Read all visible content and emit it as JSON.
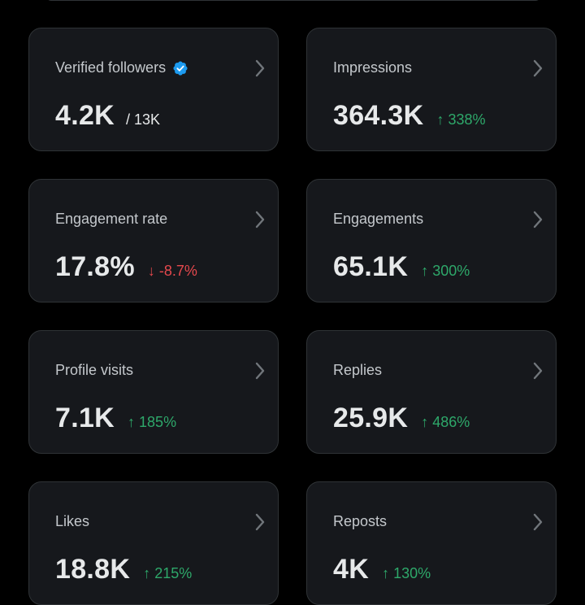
{
  "colors": {
    "background": "#000000",
    "card_background": "#16181c",
    "card_border": "#2f3336",
    "label": "#c4c8cc",
    "value": "#e7e9ea",
    "positive": "#2ea86a",
    "negative": "#e5484d",
    "verified_badge": "#1d9bf0",
    "chevron": "#71767b"
  },
  "cards": [
    {
      "label": "Verified followers",
      "value": "4.2K",
      "total": "/ 13K",
      "badge": "verified-badge-icon",
      "icon": "chevron-right-icon"
    },
    {
      "label": "Impressions",
      "value": "364.3K",
      "change": "↑ 338%",
      "direction": "up",
      "icon": "chevron-right-icon"
    },
    {
      "label": "Engagement rate",
      "value": "17.8%",
      "change": "↓ -8.7%",
      "direction": "down",
      "icon": "chevron-right-icon"
    },
    {
      "label": "Engagements",
      "value": "65.1K",
      "change": "↑ 300%",
      "direction": "up",
      "icon": "chevron-right-icon"
    },
    {
      "label": "Profile visits",
      "value": "7.1K",
      "change": "↑ 185%",
      "direction": "up",
      "icon": "chevron-right-icon"
    },
    {
      "label": "Replies",
      "value": "25.9K",
      "change": "↑ 486%",
      "direction": "up",
      "icon": "chevron-right-icon"
    },
    {
      "label": "Likes",
      "value": "18.8K",
      "change": "↑ 215%",
      "direction": "up",
      "icon": "chevron-right-icon"
    },
    {
      "label": "Reposts",
      "value": "4K",
      "change": "↑ 130%",
      "direction": "up",
      "icon": "chevron-right-icon"
    }
  ]
}
